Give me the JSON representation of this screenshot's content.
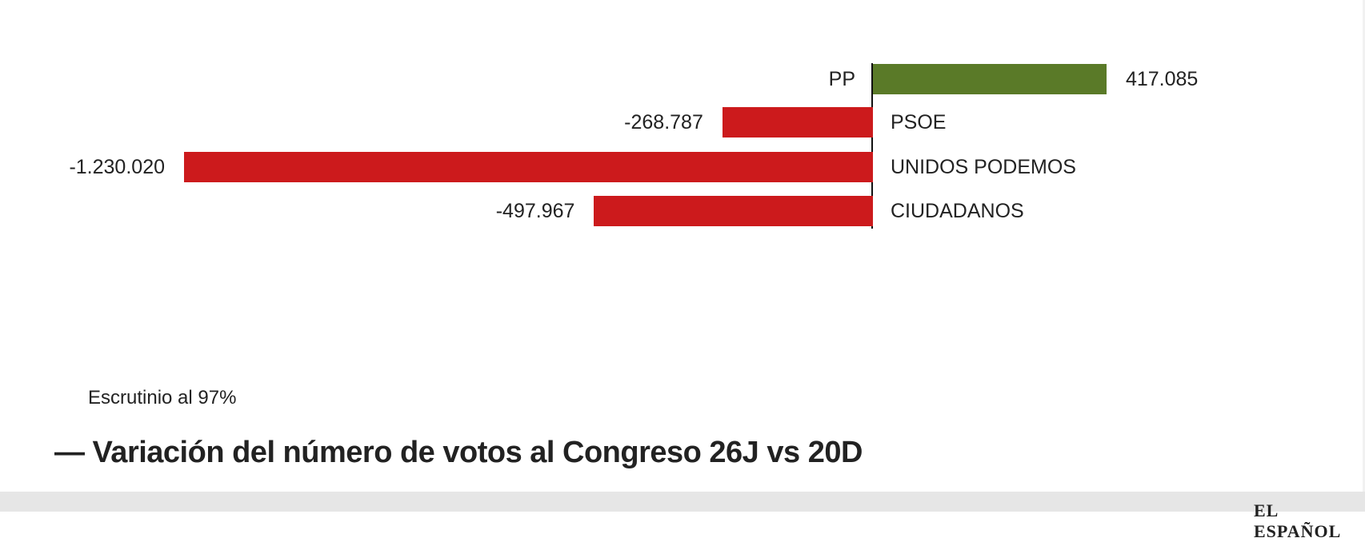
{
  "chart_data": {
    "type": "bar",
    "orientation": "horizontal-diverging",
    "title": "Variación del número de votos al Congreso 26J vs 20D",
    "subtitle": "Escrutinio al 97%",
    "categories": [
      "PP",
      "PSOE",
      "UNIDOS PODEMOS",
      "CIUDADANOS"
    ],
    "values": [
      417085,
      -268787,
      -1230020,
      -497967
    ],
    "value_labels": [
      "417.085",
      "-268.787",
      "-1.230.020",
      "-497.967"
    ],
    "colors": {
      "positive": "#5a7a28",
      "negative": "#cc1a1c"
    },
    "xlabel": "",
    "ylabel": "",
    "grid": false,
    "legend": null
  },
  "header": {
    "subtitle": "Escrutinio al 97%",
    "title": "— Variación del número de votos al Congreso 26J vs 20D"
  },
  "footer": {
    "logo": "EL ESPAÑOL"
  }
}
